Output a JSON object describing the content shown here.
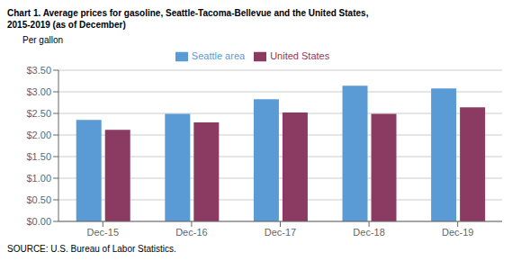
{
  "chart_data": {
    "type": "bar",
    "title": "Chart 1. Average prices for gasoline, Seattle-Tacoma-Bellevue and the United States,",
    "subtitle": "2015-2019  (as of December)",
    "ylabel": "Per gallon",
    "annotations": [
      "SOURCE: U.S. Bureau of Labor Statistics."
    ],
    "categories": [
      "Dec-15",
      "Dec-16",
      "Dec-17",
      "Dec-18",
      "Dec-19"
    ],
    "series": [
      {
        "name": "Seattle area",
        "color": "#5B9BD5",
        "values": [
          2.35,
          2.49,
          2.83,
          3.14,
          3.08
        ]
      },
      {
        "name": "United States",
        "color": "#8B3A62",
        "values": [
          2.12,
          2.29,
          2.52,
          2.49,
          2.64
        ]
      }
    ],
    "ylim": [
      0.0,
      3.5
    ],
    "yticks": [
      {
        "value": 0.0,
        "label": "$0.00"
      },
      {
        "value": 0.5,
        "label": "$0.50"
      },
      {
        "value": 1.0,
        "label": "$1.00"
      },
      {
        "value": 1.5,
        "label": "$1.50"
      },
      {
        "value": 2.0,
        "label": "$2.00"
      },
      {
        "value": 2.5,
        "label": "$2.50"
      },
      {
        "value": 3.0,
        "label": "$3.00"
      },
      {
        "value": 3.5,
        "label": "$3.50"
      }
    ],
    "grid": true,
    "legend": "top"
  }
}
